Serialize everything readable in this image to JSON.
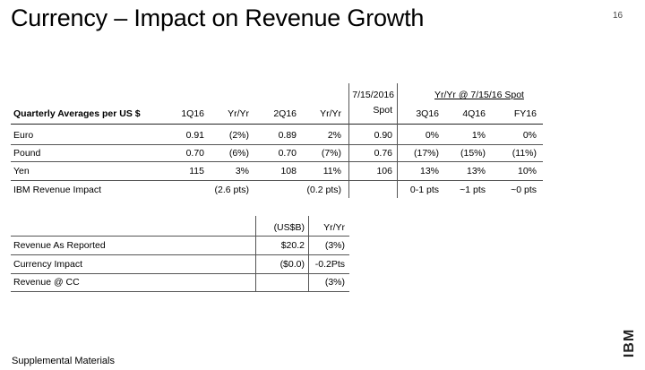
{
  "slide": {
    "title": "Currency – Impact on Revenue Growth",
    "page_number": "16",
    "footer": "Supplemental Materials",
    "logo_text": "IBM"
  },
  "table1": {
    "spot_header_top": "7/15/2016",
    "spot_header_bottom": "Spot",
    "group_header": "Yr/Yr @ 7/15/16 Spot",
    "columns": [
      "Quarterly Averages per US $",
      "1Q16",
      "Yr/Yr",
      "2Q16",
      "Yr/Yr",
      "",
      "3Q16",
      "4Q16",
      "FY16"
    ],
    "rows": [
      {
        "label": "Euro",
        "values": [
          "0.91",
          "(2%)",
          "0.89",
          "2%",
          "0.90",
          "0%",
          "1%",
          "0%"
        ]
      },
      {
        "label": "Pound",
        "values": [
          "0.70",
          "(6%)",
          "0.70",
          "(7%)",
          "0.76",
          "(17%)",
          "(15%)",
          "(11%)"
        ]
      },
      {
        "label": "Yen",
        "values": [
          "115",
          "3%",
          "108",
          "11%",
          "106",
          "13%",
          "13%",
          "10%"
        ]
      },
      {
        "label": "IBM Revenue Impact",
        "values": [
          "",
          "(2.6 pts)",
          "",
          "(0.2 pts)",
          "",
          "0-1 pts",
          "~1 pts",
          "~0 pts"
        ]
      }
    ]
  },
  "table2": {
    "columns": [
      "",
      "(US$B)",
      "Yr/Yr"
    ],
    "rows": [
      {
        "label": "Revenue As Reported",
        "values": [
          "$20.2",
          "(3%)"
        ]
      },
      {
        "label": "Currency Impact",
        "values": [
          "($0.0)",
          "-0.2Pts"
        ]
      },
      {
        "label": "Revenue @ CC",
        "values": [
          "",
          "(3%)"
        ]
      }
    ]
  }
}
